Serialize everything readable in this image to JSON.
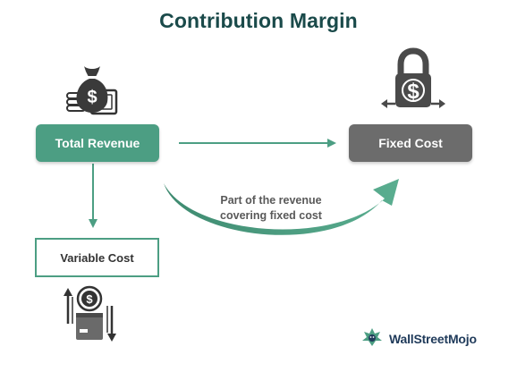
{
  "title": "Contribution Margin",
  "nodes": {
    "total_revenue": "Total Revenue",
    "fixed_cost": "Fixed Cost",
    "variable_cost": "Variable Cost"
  },
  "curve_label": {
    "line1": "Part of the revenue",
    "line2": "covering fixed cost"
  },
  "brand": {
    "name": "WallStreetMojo"
  },
  "colors": {
    "primary_green": "#4c9e83",
    "dark_green": "#2f6b57",
    "gray": "#6c6c6c",
    "title": "#1a4a4a"
  },
  "icons": {
    "revenue": "money-bag-icon",
    "fixed_cost": "padlock-dollar-icon",
    "variable_cost": "box-coin-arrows-icon",
    "brand": "wallstreetmojo-logo-icon"
  }
}
